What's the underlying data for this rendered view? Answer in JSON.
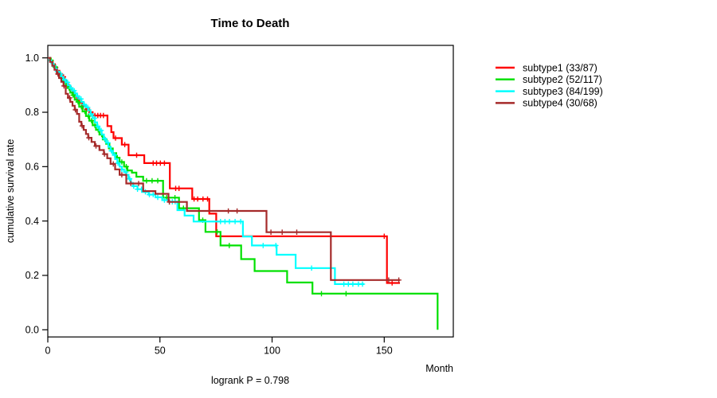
{
  "chart_data": {
    "type": "line",
    "chart_kind": "kaplan-meier-step-curves",
    "title": "Time to Death",
    "xlabel": "Month",
    "ylabel": "cumulative survival rate",
    "footnote": "logrank P = 0.798",
    "xlim": [
      0,
      180
    ],
    "ylim": [
      0.0,
      1.0
    ],
    "xticks": [
      0,
      50,
      100,
      150
    ],
    "yticks": [
      0.0,
      0.2,
      0.4,
      0.6,
      0.8,
      1.0
    ],
    "grid": false,
    "legend_position": "right-outside",
    "axis_color": "#000000",
    "series": [
      {
        "name": "subtype1 (33/87)",
        "color": "#ff0000",
        "end_month": 157,
        "steps": [
          [
            0,
            1.0
          ],
          [
            1.2,
            0.988
          ],
          [
            2.2,
            0.977
          ],
          [
            3.2,
            0.965
          ],
          [
            4.2,
            0.953
          ],
          [
            5.2,
            0.941
          ],
          [
            6.2,
            0.93
          ],
          [
            7.5,
            0.918
          ],
          [
            8.2,
            0.906
          ],
          [
            9,
            0.895
          ],
          [
            10,
            0.883
          ],
          [
            11,
            0.871
          ],
          [
            12,
            0.859
          ],
          [
            13,
            0.847
          ],
          [
            14,
            0.835
          ],
          [
            15.5,
            0.823
          ],
          [
            17,
            0.811
          ],
          [
            18.5,
            0.8
          ],
          [
            20,
            0.788
          ],
          [
            26.6,
            0.749
          ],
          [
            28.3,
            0.727
          ],
          [
            29.3,
            0.705
          ],
          [
            33,
            0.681
          ],
          [
            36,
            0.642
          ],
          [
            43,
            0.613
          ],
          [
            54.4,
            0.52
          ],
          [
            64.4,
            0.481
          ],
          [
            72,
            0.427
          ],
          [
            75.1,
            0.344
          ],
          [
            151.2,
            0.172
          ]
        ],
        "censor_months": [
          3.5,
          5.5,
          7,
          9.5,
          11.5,
          13.5,
          15.8,
          17.3,
          21,
          22.3,
          23.5,
          24.8,
          30.2,
          34.3,
          39.6,
          47,
          48.5,
          50.2,
          52,
          57,
          58.5,
          65.2,
          66.8,
          69.2,
          71.2,
          150,
          153.5
        ]
      },
      {
        "name": "subtype2 (52/117)",
        "color": "#00e000",
        "end_month": 173.8,
        "steps": [
          [
            0,
            1.0
          ],
          [
            1,
            0.991
          ],
          [
            2,
            0.974
          ],
          [
            3,
            0.966
          ],
          [
            4,
            0.949
          ],
          [
            5,
            0.94
          ],
          [
            6,
            0.923
          ],
          [
            7,
            0.915
          ],
          [
            8,
            0.898
          ],
          [
            9,
            0.889
          ],
          [
            10,
            0.872
          ],
          [
            11,
            0.863
          ],
          [
            12,
            0.846
          ],
          [
            13,
            0.838
          ],
          [
            14,
            0.82
          ],
          [
            15.5,
            0.803
          ],
          [
            17,
            0.786
          ],
          [
            18.5,
            0.769
          ],
          [
            20,
            0.752
          ],
          [
            21.5,
            0.735
          ],
          [
            23,
            0.718
          ],
          [
            24.5,
            0.7
          ],
          [
            26,
            0.684
          ],
          [
            27.5,
            0.667
          ],
          [
            29,
            0.65
          ],
          [
            30.5,
            0.633
          ],
          [
            32,
            0.617
          ],
          [
            34,
            0.6
          ],
          [
            35.5,
            0.586
          ],
          [
            37.5,
            0.578
          ],
          [
            39.5,
            0.563
          ],
          [
            42.5,
            0.548
          ],
          [
            51.4,
            0.486
          ],
          [
            58.5,
            0.447
          ],
          [
            67.4,
            0.403
          ],
          [
            70.3,
            0.36
          ],
          [
            77,
            0.31
          ],
          [
            86.2,
            0.26
          ],
          [
            92.2,
            0.216
          ],
          [
            106.7,
            0.174
          ],
          [
            118,
            0.133
          ],
          [
            173.8,
            0.0
          ]
        ],
        "censor_months": [
          1.5,
          3.3,
          5.5,
          7.3,
          9.5,
          11.3,
          13.5,
          15,
          16.5,
          18,
          19.5,
          21,
          22.5,
          24,
          25.5,
          28,
          31,
          33,
          35,
          44,
          46.5,
          49,
          53,
          56.7,
          60.5,
          69.1,
          75.5,
          80.9,
          122,
          133
        ]
      },
      {
        "name": "subtype3 (84/199)",
        "color": "#00ffff",
        "end_month": 141,
        "steps": [
          [
            0,
            1.0
          ],
          [
            0.8,
            0.99
          ],
          [
            1.6,
            0.98
          ],
          [
            2.4,
            0.97
          ],
          [
            3.2,
            0.96
          ],
          [
            4,
            0.95
          ],
          [
            5,
            0.94
          ],
          [
            6,
            0.93
          ],
          [
            7,
            0.92
          ],
          [
            8,
            0.91
          ],
          [
            9,
            0.899
          ],
          [
            10,
            0.889
          ],
          [
            11,
            0.879
          ],
          [
            12,
            0.869
          ],
          [
            13,
            0.859
          ],
          [
            14,
            0.849
          ],
          [
            15,
            0.838
          ],
          [
            16,
            0.828
          ],
          [
            17,
            0.818
          ],
          [
            18,
            0.808
          ],
          [
            19,
            0.793
          ],
          [
            20,
            0.778
          ],
          [
            21,
            0.763
          ],
          [
            22,
            0.748
          ],
          [
            23,
            0.733
          ],
          [
            24,
            0.718
          ],
          [
            25,
            0.703
          ],
          [
            26,
            0.688
          ],
          [
            27,
            0.673
          ],
          [
            28,
            0.658
          ],
          [
            29,
            0.643
          ],
          [
            30,
            0.628
          ],
          [
            31,
            0.613
          ],
          [
            32,
            0.6
          ],
          [
            33,
            0.59
          ],
          [
            34,
            0.58
          ],
          [
            35,
            0.57
          ],
          [
            36,
            0.555
          ],
          [
            37,
            0.54
          ],
          [
            38,
            0.528
          ],
          [
            40,
            0.517
          ],
          [
            42,
            0.507
          ],
          [
            45,
            0.497
          ],
          [
            48,
            0.487
          ],
          [
            51,
            0.477
          ],
          [
            54,
            0.471
          ],
          [
            57.8,
            0.44
          ],
          [
            61,
            0.42
          ],
          [
            65,
            0.398
          ],
          [
            87,
            0.343
          ],
          [
            91,
            0.31
          ],
          [
            102,
            0.276
          ],
          [
            110.5,
            0.227
          ],
          [
            128,
            0.168
          ]
        ],
        "censor_months": [
          2.8,
          4.3,
          5.8,
          7.3,
          8.8,
          10.3,
          11.8,
          13.3,
          14.8,
          16.3,
          17.8,
          19.3,
          20.8,
          22.3,
          23.8,
          25.3,
          26.8,
          28.3,
          29.8,
          31.3,
          33,
          34.8,
          36.5,
          38.3,
          40,
          41.8,
          43.5,
          45.3,
          47,
          49,
          52,
          55.5,
          56.8,
          77,
          79,
          81,
          83.5,
          86,
          96,
          101.7,
          117.6,
          132,
          134,
          136,
          138.5,
          140.3
        ]
      },
      {
        "name": "subtype4 (30/68)",
        "color": "#a52a2a",
        "end_month": 157,
        "steps": [
          [
            0,
            1.0
          ],
          [
            1,
            0.985
          ],
          [
            2,
            0.971
          ],
          [
            3,
            0.956
          ],
          [
            4,
            0.941
          ],
          [
            5,
            0.926
          ],
          [
            6,
            0.912
          ],
          [
            7,
            0.897
          ],
          [
            8,
            0.868
          ],
          [
            9,
            0.853
          ],
          [
            10,
            0.838
          ],
          [
            11,
            0.824
          ],
          [
            12,
            0.809
          ],
          [
            13,
            0.794
          ],
          [
            14,
            0.765
          ],
          [
            15,
            0.75
          ],
          [
            16,
            0.735
          ],
          [
            17,
            0.72
          ],
          [
            18,
            0.706
          ],
          [
            19.5,
            0.691
          ],
          [
            21,
            0.676
          ],
          [
            23,
            0.661
          ],
          [
            25,
            0.646
          ],
          [
            26.5,
            0.631
          ],
          [
            28,
            0.61
          ],
          [
            30,
            0.59
          ],
          [
            32,
            0.57
          ],
          [
            35,
            0.538
          ],
          [
            42.5,
            0.51
          ],
          [
            48,
            0.5
          ],
          [
            53.8,
            0.47
          ],
          [
            62,
            0.437
          ],
          [
            97.5,
            0.359
          ],
          [
            126.2,
            0.183
          ]
        ],
        "censor_months": [
          4.5,
          7.2,
          9.7,
          12.3,
          15.3,
          18.3,
          21.5,
          25.3,
          29.2,
          33,
          37,
          40.5,
          54.2,
          80.5,
          84.4,
          99.5,
          104.5,
          111,
          152,
          156.5
        ]
      }
    ]
  }
}
